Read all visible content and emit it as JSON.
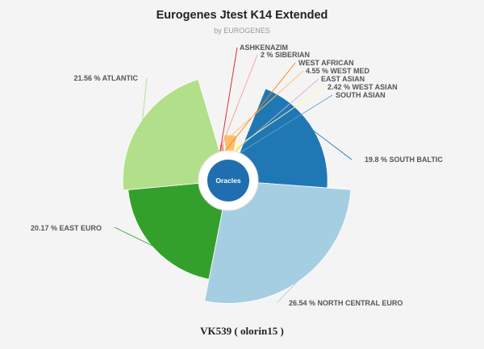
{
  "chart_data": {
    "type": "pie",
    "title": "Eurogenes Jtest K14 Extended",
    "subtitle": "by EUROGENES",
    "center_label": "Oracles",
    "caption": "VK539 ( olorin15 )",
    "slices": [
      {
        "name": "SOUTH BALTIC",
        "value": 19.8,
        "label": "19.8 %  SOUTH BALTIC",
        "color": "#1f78b4"
      },
      {
        "name": "NORTH CENTRAL EURO",
        "value": 26.54,
        "label": "26.54 %  NORTH CENTRAL EURO",
        "color": "#a6cee3"
      },
      {
        "name": "EAST EURO",
        "value": 20.17,
        "label": "20.17 %  EAST EURO",
        "color": "#33a02c"
      },
      {
        "name": "ATLANTIC",
        "value": 21.56,
        "label": "21.56 %  ATLANTIC",
        "color": "#b2df8a"
      },
      {
        "name": "ASHKENAZIM",
        "value": 0.6,
        "label": "ASHKENAZIM",
        "color": "#e31a1c"
      },
      {
        "name": "SIBERIAN",
        "value": 2,
        "label": "2 %  SIBERIAN",
        "color": "#fb9a99"
      },
      {
        "name": "WEST AFRICAN",
        "value": 0.4,
        "label": "WEST AFRICAN",
        "color": "#ff7f00"
      },
      {
        "name": "WEST MED",
        "value": 4.55,
        "label": "4.55 %  WEST MED",
        "color": "#fdbf6f"
      },
      {
        "name": "EAST ASIAN",
        "value": 0.3,
        "label": "EAST ASIAN",
        "color": "#cab2d6"
      },
      {
        "name": "WEST ASIAN",
        "value": 2.42,
        "label": "2.42 %  WEST ASIAN",
        "color": "#ffff99"
      },
      {
        "name": "SOUTH ASIAN",
        "value": 0.3,
        "label": "SOUTH ASIAN",
        "color": "#6a9ec9"
      }
    ]
  }
}
